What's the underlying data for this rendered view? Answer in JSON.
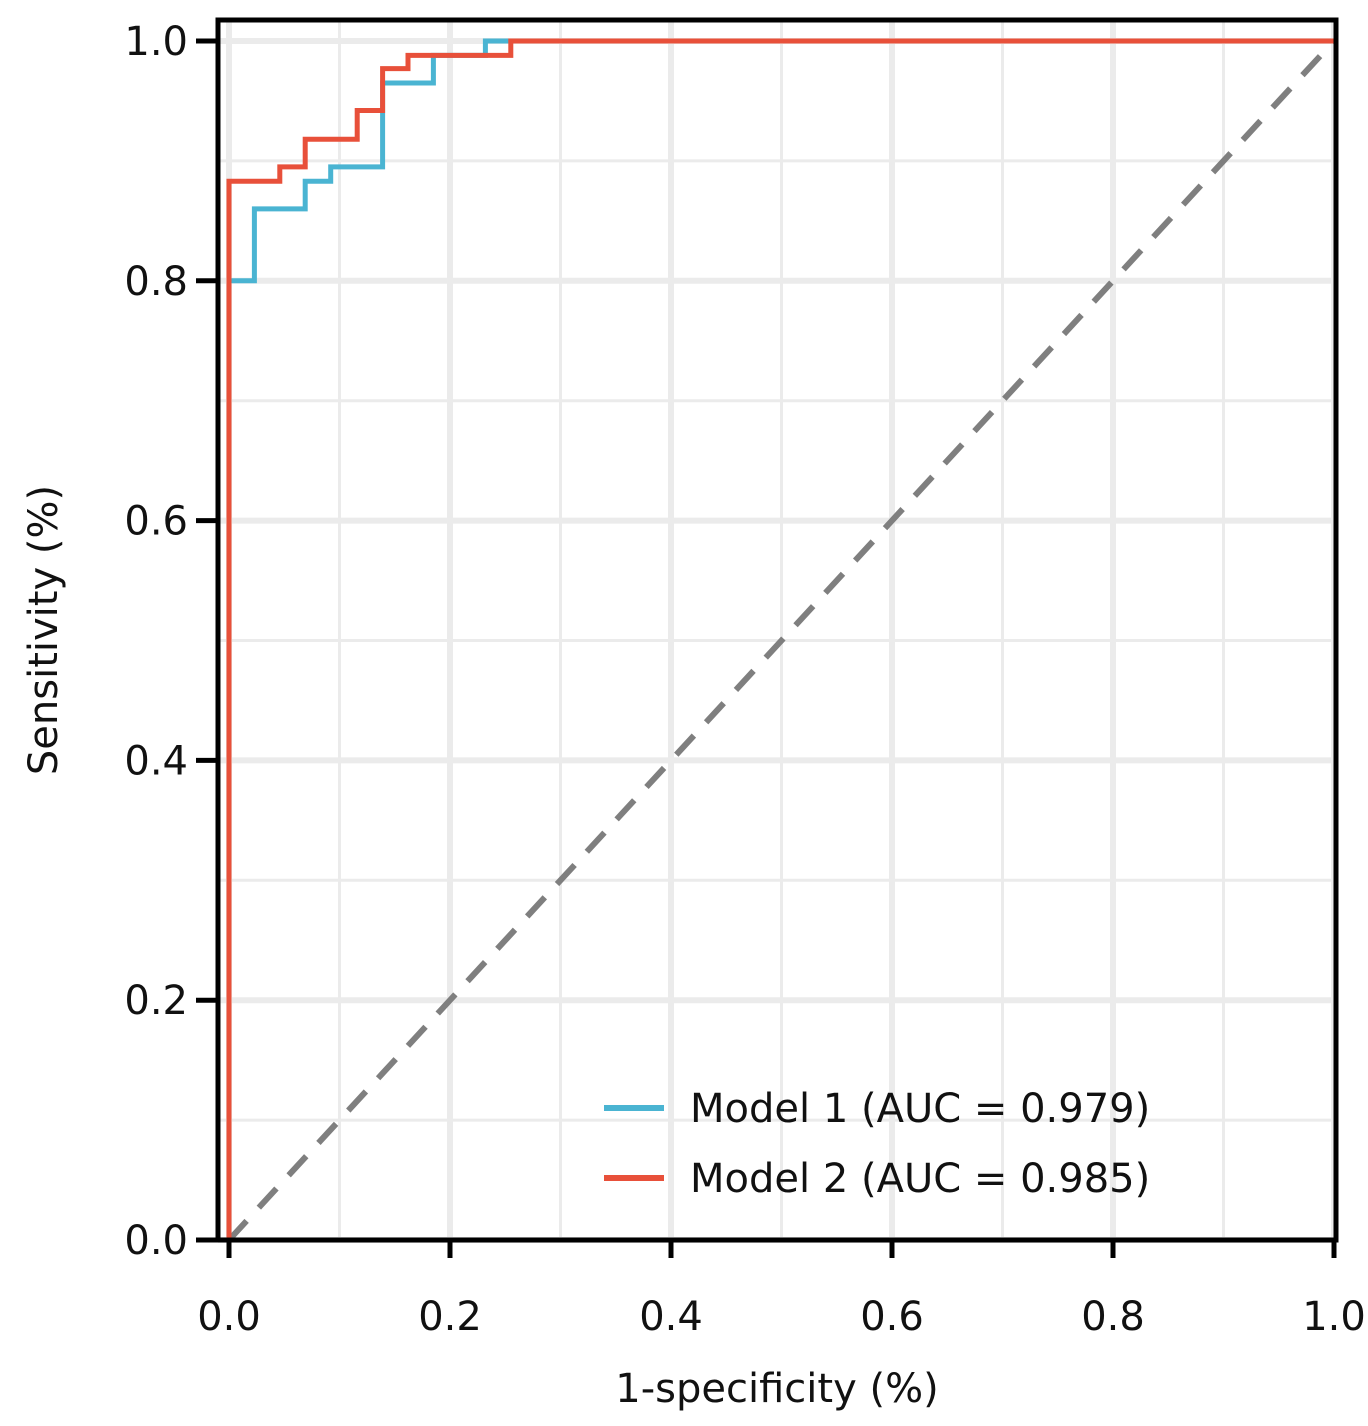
{
  "chart_data": {
    "type": "line",
    "title": "",
    "xlabel": "1-specificity (%)",
    "ylabel": "Sensitivity (%)",
    "xlim": [
      0,
      1
    ],
    "ylim": [
      0,
      1
    ],
    "xticks": [
      "0.0",
      "0.2",
      "0.4",
      "0.6",
      "0.8",
      "1.0"
    ],
    "yticks": [
      "0.0",
      "0.2",
      "0.4",
      "0.6",
      "0.8",
      "1.0"
    ],
    "grid": true,
    "legend_position": "bottom-right",
    "reference_line": {
      "x": [
        0,
        1
      ],
      "y": [
        0,
        1
      ],
      "color": "#7f7f7f",
      "style": "dashed"
    },
    "series": [
      {
        "name": "Model 1 (AUC = 0.979)",
        "color": "#4ab4d2",
        "x": [
          0.0,
          0.0,
          0.023,
          0.023,
          0.069,
          0.069,
          0.092,
          0.092,
          0.139,
          0.139,
          0.185,
          0.185,
          0.232,
          0.232,
          1.0
        ],
        "y": [
          0.0,
          0.8,
          0.8,
          0.86,
          0.86,
          0.883,
          0.883,
          0.895,
          0.895,
          0.965,
          0.965,
          0.988,
          0.988,
          1.0,
          1.0
        ]
      },
      {
        "name": "Model 2 (AUC = 0.985)",
        "color": "#e8503a",
        "x": [
          0.0,
          0.0,
          0.046,
          0.046,
          0.069,
          0.069,
          0.116,
          0.116,
          0.139,
          0.139,
          0.162,
          0.162,
          0.255,
          0.255,
          1.0
        ],
        "y": [
          0.0,
          0.883,
          0.883,
          0.895,
          0.895,
          0.918,
          0.918,
          0.942,
          0.942,
          0.977,
          0.977,
          0.988,
          0.988,
          1.0,
          1.0
        ]
      }
    ]
  }
}
